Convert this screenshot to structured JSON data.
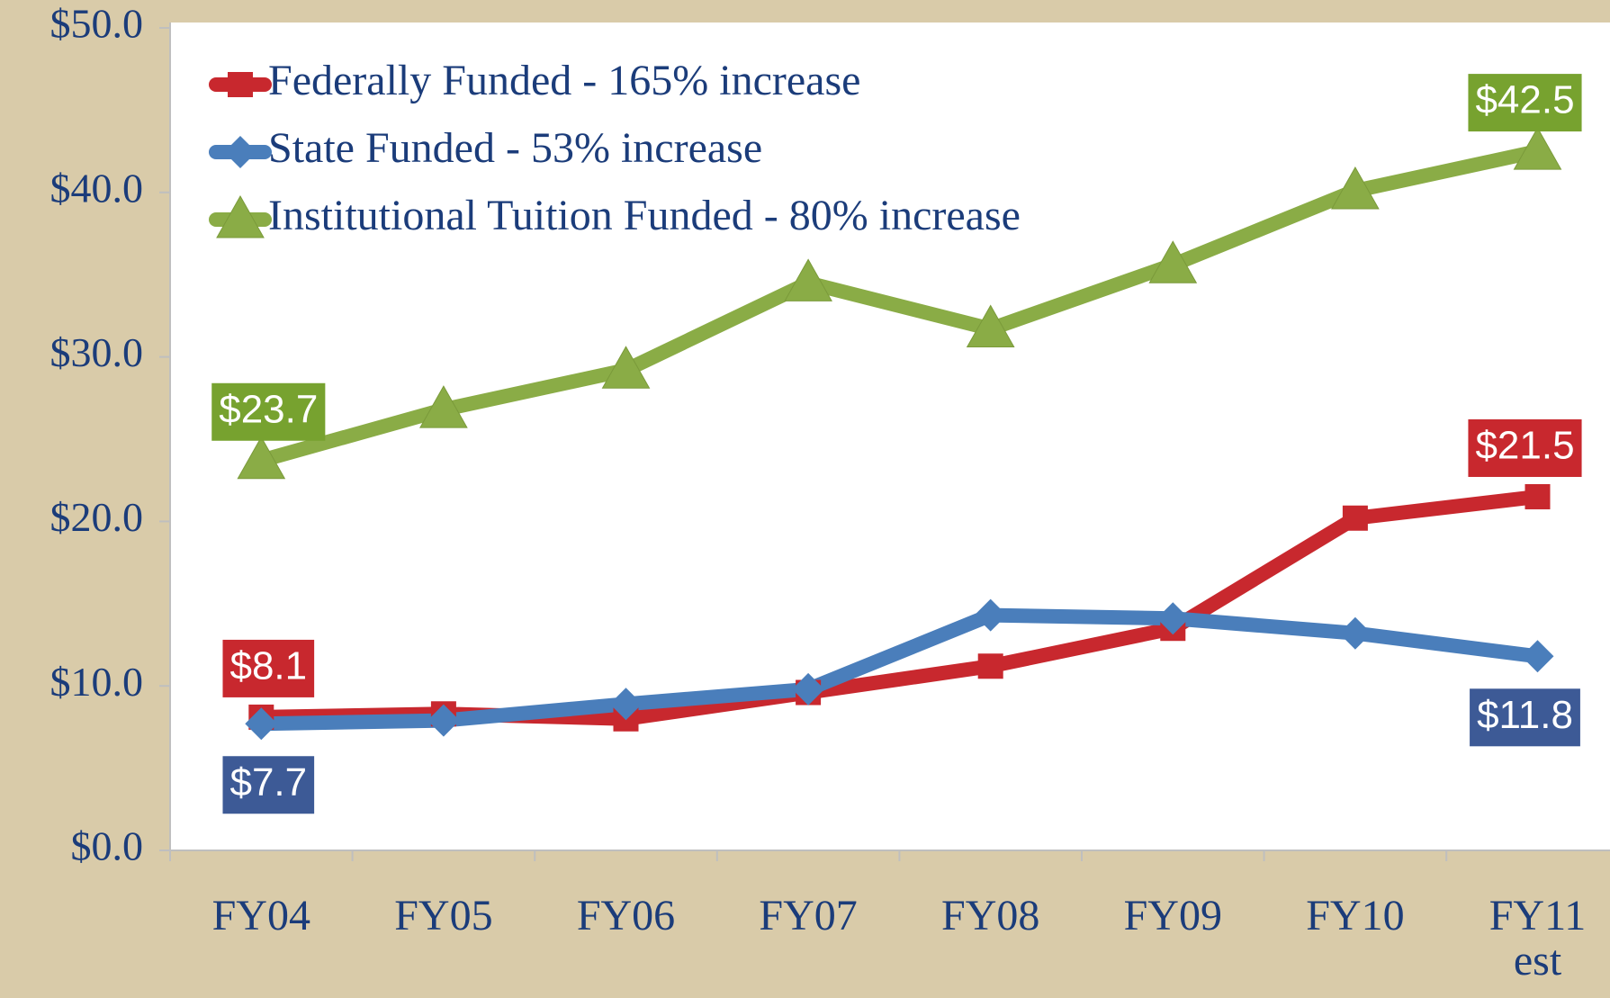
{
  "chart_data": {
    "type": "line",
    "categories": [
      "FY04",
      "FY05",
      "FY06",
      "FY07",
      "FY08",
      "FY09",
      "FY10",
      "FY11 est"
    ],
    "series": [
      {
        "name": "Federally Funded - 165% increase",
        "color": "#c8282e",
        "label_color": "#c8282e",
        "marker": "square",
        "label_side": "above",
        "values": [
          8.1,
          8.3,
          8.0,
          9.6,
          11.2,
          13.5,
          20.2,
          21.5
        ],
        "value_labels": [
          "$8.1",
          null,
          null,
          null,
          null,
          null,
          null,
          "$21.5"
        ]
      },
      {
        "name": "State Funded - 53% increase",
        "color": "#4a7ebb",
        "label_color": "#3d5a96",
        "marker": "diamond",
        "label_side": "below",
        "values": [
          7.7,
          7.9,
          8.9,
          9.8,
          14.3,
          14.1,
          13.2,
          11.8
        ],
        "value_labels": [
          "$7.7",
          null,
          null,
          null,
          null,
          null,
          null,
          "$11.8"
        ]
      },
      {
        "name": "Institutional Tuition Funded - 80% increase",
        "color": "#8aac46",
        "label_color": "#77a22f",
        "marker": "triangle",
        "label_side": "above",
        "values": [
          23.7,
          26.8,
          29.2,
          34.5,
          31.7,
          35.6,
          40.1,
          42.5
        ],
        "value_labels": [
          "$23.7",
          null,
          null,
          null,
          null,
          null,
          null,
          "$42.5"
        ]
      }
    ],
    "ylim": [
      0,
      50
    ],
    "yticks": [
      {
        "value": 0,
        "label": "$0.0"
      },
      {
        "value": 10,
        "label": "$10.0"
      },
      {
        "value": 20,
        "label": "$20.0"
      },
      {
        "value": 30,
        "label": "$30.0"
      },
      {
        "value": 40,
        "label": "$40.0"
      },
      {
        "value": 50,
        "label": "$50.0"
      }
    ],
    "legend": "top-left",
    "grid": false
  }
}
